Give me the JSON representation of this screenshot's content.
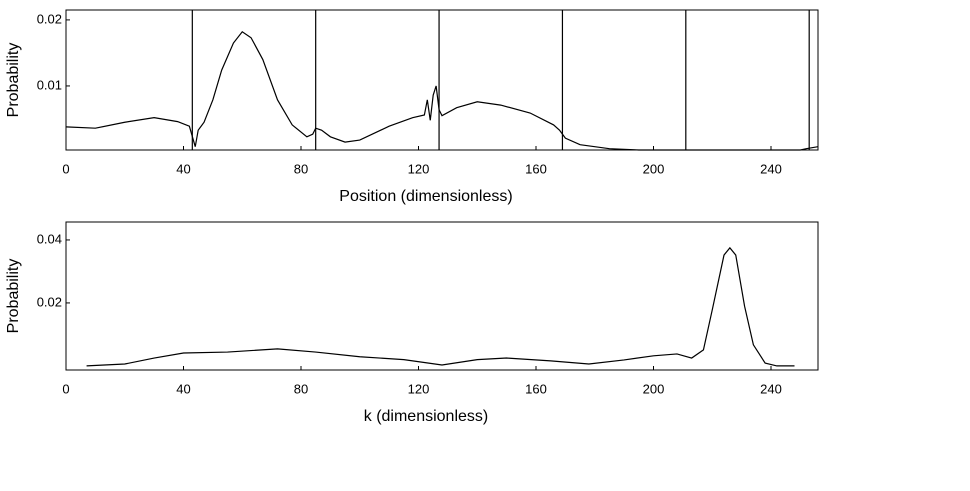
{
  "chart_data": [
    {
      "type": "line",
      "x_label": "Position (dimensionless)",
      "y_label": "Probability",
      "xlim": [
        0,
        256
      ],
      "ylim": [
        0.0003,
        0.0215
      ],
      "xticks": [
        0,
        40,
        80,
        120,
        160,
        200,
        240
      ],
      "yticks": [
        0.01,
        0.02
      ],
      "vlines": [
        43,
        85,
        127,
        169,
        211,
        253
      ],
      "series": [
        {
          "color": "#000000",
          "x": [
            0,
            10,
            20,
            30,
            38,
            42,
            44,
            45,
            47,
            50,
            53,
            57,
            60,
            63,
            67,
            72,
            77,
            82,
            84,
            85,
            87,
            90,
            95,
            100,
            110,
            118,
            122,
            123,
            124,
            125,
            126,
            127,
            128,
            133,
            140,
            148,
            158,
            166,
            168,
            170,
            175,
            185,
            195,
            210,
            250,
            252,
            256
          ],
          "values": [
            0.0038,
            0.0036,
            0.0045,
            0.0052,
            0.0046,
            0.0039,
            0.0008,
            0.0033,
            0.0045,
            0.0079,
            0.0124,
            0.0165,
            0.0182,
            0.0173,
            0.014,
            0.0079,
            0.0041,
            0.0023,
            0.0027,
            0.0036,
            0.0033,
            0.0023,
            0.0015,
            0.0018,
            0.0039,
            0.0052,
            0.0056,
            0.0079,
            0.0048,
            0.0086,
            0.01,
            0.0064,
            0.0055,
            0.0067,
            0.0076,
            0.0071,
            0.0059,
            0.0041,
            0.0033,
            0.0021,
            0.0011,
            0.0005,
            0.0003,
            0.0003,
            0.0003,
            0.0005,
            0.0008
          ]
        }
      ]
    },
    {
      "type": "line",
      "x_label": "k (dimensionless)",
      "y_label": "Probability",
      "xlim": [
        0,
        256
      ],
      "ylim": [
        -0.0013,
        0.0457
      ],
      "xticks": [
        0,
        40,
        80,
        120,
        160,
        200,
        240
      ],
      "yticks": [
        0.02,
        0.04
      ],
      "series": [
        {
          "color": "#000000",
          "x": [
            7,
            20,
            30,
            40,
            55,
            72,
            85,
            100,
            115,
            128,
            140,
            150,
            165,
            178,
            190,
            200,
            208,
            213,
            217,
            220,
            224,
            226,
            228,
            231,
            234,
            238,
            242,
            248
          ],
          "values": [
            0,
            0.0006,
            0.0025,
            0.0041,
            0.0044,
            0.0054,
            0.0044,
            0.0029,
            0.002,
            0.0003,
            0.002,
            0.0025,
            0.0016,
            0.0006,
            0.0019,
            0.0032,
            0.0038,
            0.0025,
            0.0051,
            0.0178,
            0.0352,
            0.0375,
            0.0352,
            0.019,
            0.0067,
            0.0009,
            0,
            0
          ]
        }
      ]
    }
  ]
}
